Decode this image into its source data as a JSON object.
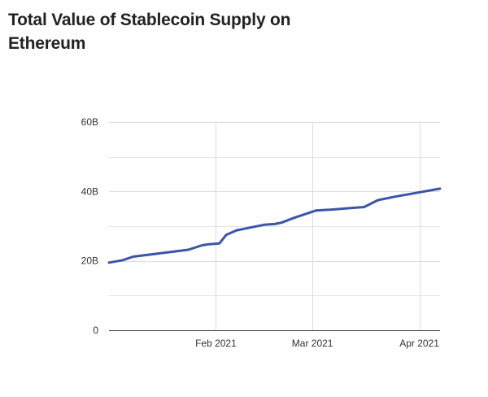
{
  "chart_data": {
    "type": "line",
    "title": "Total Value of Stablecoin Supply on Ethereum",
    "xlabel": "",
    "ylabel": "",
    "ylim": [
      0,
      60
    ],
    "y_unit": "B",
    "y_ticks": [
      0,
      20,
      40,
      60
    ],
    "y_tick_labels": [
      "0",
      "20B",
      "40B",
      "60B"
    ],
    "x_range": [
      "2021-01-01",
      "2021-04-07"
    ],
    "x_ticks": [
      {
        "date": "2021-02-01",
        "label": "Feb 2021"
      },
      {
        "date": "2021-03-01",
        "label": "Mar 2021"
      },
      {
        "date": "2021-04-01",
        "label": "Apr 2021"
      }
    ],
    "grid": true,
    "legend": "none",
    "line_color": "#3b55a8",
    "series": [
      {
        "x": [
          "2021-01-01",
          "2021-01-05",
          "2021-01-08",
          "2021-01-12",
          "2021-01-16",
          "2021-01-20",
          "2021-01-24",
          "2021-01-28",
          "2021-01-30",
          "2021-02-02",
          "2021-02-04",
          "2021-02-07",
          "2021-02-11",
          "2021-02-15",
          "2021-02-18",
          "2021-02-20",
          "2021-02-24",
          "2021-03-02",
          "2021-03-07",
          "2021-03-12",
          "2021-03-16",
          "2021-03-20",
          "2021-03-25",
          "2021-04-07"
        ],
        "y": [
          19.5,
          20.2,
          21.2,
          21.7,
          22.2,
          22.7,
          23.2,
          24.5,
          24.8,
          25.0,
          27.5,
          28.8,
          29.6,
          30.4,
          30.6,
          31.0,
          32.5,
          34.5,
          34.8,
          35.2,
          35.5,
          37.5,
          38.5,
          40.8
        ]
      }
    ]
  }
}
